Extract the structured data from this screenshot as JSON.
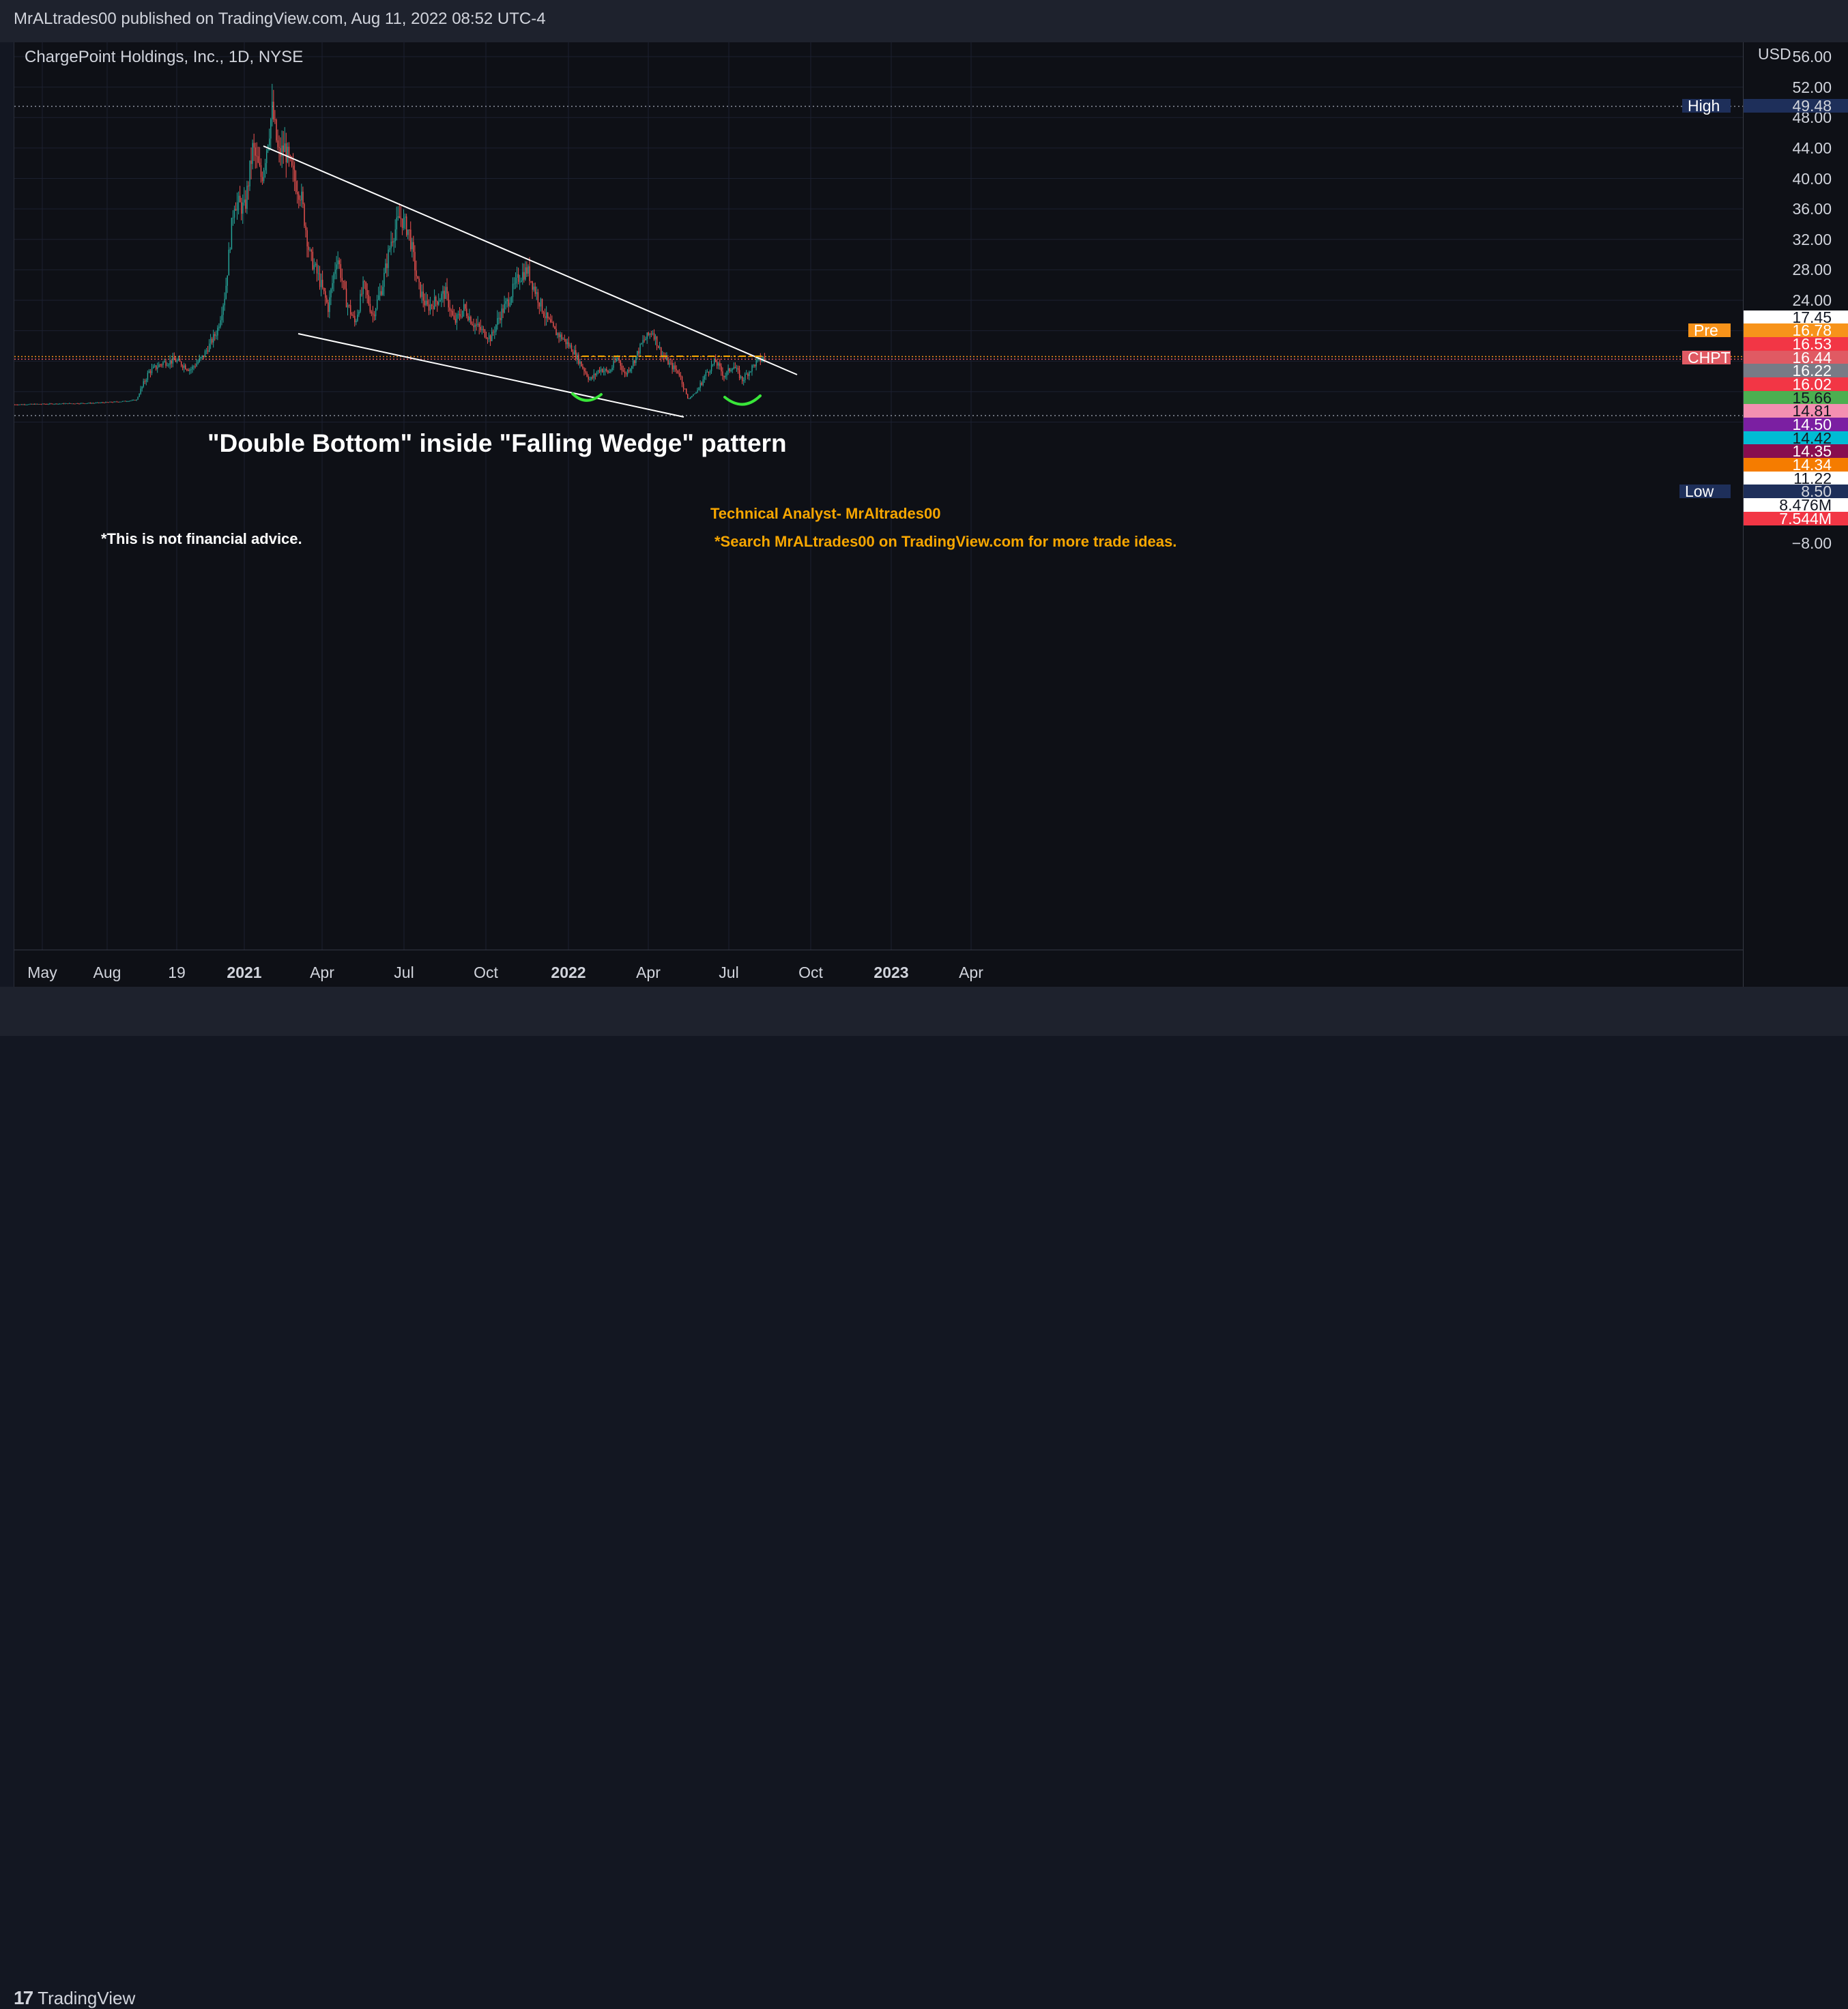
{
  "header": {
    "publisher": "MrALtrades00 published on TradingView.com, Aug 11, 2022 08:52 UTC-4"
  },
  "symbol": {
    "title": "ChargePoint Holdings, Inc., 1D, NYSE"
  },
  "price_axis": {
    "currency": "USD",
    "ticks": [
      "56.00",
      "52.00",
      "48.00",
      "44.00",
      "40.00",
      "36.00",
      "32.00",
      "28.00",
      "24.00",
      "−8.00"
    ],
    "tags": [
      {
        "label": "High",
        "value": "49.48",
        "bg": "#1e2f5a",
        "fg": "#d1d4dc",
        "labelBg": "#1e2f5a"
      },
      {
        "label": "",
        "value": "17.45",
        "bg": "#ffffff",
        "fg": "#131722"
      },
      {
        "label": "Pre",
        "value": "16.78",
        "bg": "#f7931a",
        "fg": "#ffffff",
        "labelBg": "#f7931a"
      },
      {
        "label": "",
        "value": "16.53",
        "bg": "#f23645",
        "fg": "#ffffff"
      },
      {
        "label": "CHPT",
        "value": "16.44",
        "bg": "#e05a63",
        "fg": "#ffffff",
        "labelBg": "#e05a63"
      },
      {
        "label": "",
        "value": "16.22",
        "bg": "#787b86",
        "fg": "#ffffff"
      },
      {
        "label": "",
        "value": "16.02",
        "bg": "#f23645",
        "fg": "#ffffff"
      },
      {
        "label": "",
        "value": "15.66",
        "bg": "#4caf50",
        "fg": "#131722"
      },
      {
        "label": "",
        "value": "14.81",
        "bg": "#f48fb1",
        "fg": "#131722"
      },
      {
        "label": "",
        "value": "14.50",
        "bg": "#7b1fa2",
        "fg": "#ffffff"
      },
      {
        "label": "",
        "value": "14.42",
        "bg": "#00bcd4",
        "fg": "#131722"
      },
      {
        "label": "",
        "value": "14.35",
        "bg": "#880e4f",
        "fg": "#ffffff"
      },
      {
        "label": "",
        "value": "14.34",
        "bg": "#f57c00",
        "fg": "#ffffff"
      },
      {
        "label": "",
        "value": "11.22",
        "bg": "#ffffff",
        "fg": "#131722"
      },
      {
        "label": "Low",
        "value": "8.50",
        "bg": "#1e2f5a",
        "fg": "#d1d4dc",
        "labelBg": "#1e2f5a"
      },
      {
        "label": "",
        "value": "8.476M",
        "bg": "#ffffff",
        "fg": "#131722"
      },
      {
        "label": "",
        "value": "7.544M",
        "bg": "#f23645",
        "fg": "#ffffff"
      }
    ]
  },
  "time_axis": {
    "labels": [
      {
        "text": "May",
        "bold": false
      },
      {
        "text": "Aug",
        "bold": false
      },
      {
        "text": "19",
        "bold": false
      },
      {
        "text": "2021",
        "bold": true
      },
      {
        "text": "Apr",
        "bold": false
      },
      {
        "text": "Jul",
        "bold": false
      },
      {
        "text": "Oct",
        "bold": false
      },
      {
        "text": "2022",
        "bold": true
      },
      {
        "text": "Apr",
        "bold": false
      },
      {
        "text": "Jul",
        "bold": false
      },
      {
        "text": "Oct",
        "bold": false
      },
      {
        "text": "2023",
        "bold": true
      },
      {
        "text": "Apr",
        "bold": false
      }
    ]
  },
  "annotations": {
    "pattern_note": "\"Double Bottom\" inside \"Falling Wedge\" pattern",
    "disclaimer": "*This is not financial advice.",
    "analyst": "Technical Analyst- MrAltrades00",
    "search_note": "*Search MrALtrades00 on TradingView.com for more trade ideas."
  },
  "footer": {
    "brand": "TradingView"
  },
  "colors": {
    "up": "#26a69a",
    "down": "#ef5350",
    "trendline": "#ffffff",
    "double_bottom_arc": "#39e639",
    "annotation_orange": "#f7a600",
    "resistance": "#f7a600"
  },
  "chart_data": {
    "type": "candlestick",
    "title": "ChargePoint Holdings, Inc., 1D, NYSE",
    "ylabel": "USD",
    "ylim": [
      7.8,
      58.5
    ],
    "series": [
      {
        "name": "CHPT",
        "points": [
          [
            "2020-04-15",
            10.3
          ],
          [
            "2020-06-01",
            10.4
          ],
          [
            "2020-07-15",
            10.5
          ],
          [
            "2020-08-15",
            10.7
          ],
          [
            "2020-09-01",
            10.9
          ],
          [
            "2020-09-15",
            14.6
          ],
          [
            "2020-10-01",
            15.8
          ],
          [
            "2020-10-15",
            16.1
          ],
          [
            "2020-11-01",
            14.9
          ],
          [
            "2020-11-15",
            16.6
          ],
          [
            "2020-12-01",
            20.0
          ],
          [
            "2020-12-10",
            25.0
          ],
          [
            "2020-12-20",
            37.0
          ],
          [
            "2021-01-01",
            36.0
          ],
          [
            "2021-01-10",
            44.0
          ],
          [
            "2021-01-20",
            40.0
          ],
          [
            "2021-02-01",
            49.0
          ],
          [
            "2021-02-08",
            43.0
          ],
          [
            "2021-02-15",
            44.0
          ],
          [
            "2021-02-25",
            40.0
          ],
          [
            "2021-03-05",
            38.0
          ],
          [
            "2021-03-15",
            30.0
          ],
          [
            "2021-03-25",
            27.0
          ],
          [
            "2021-04-05",
            23.0
          ],
          [
            "2021-04-15",
            30.0
          ],
          [
            "2021-04-25",
            24.0
          ],
          [
            "2021-05-05",
            21.0
          ],
          [
            "2021-05-15",
            26.0
          ],
          [
            "2021-05-25",
            22.0
          ],
          [
            "2021-06-05",
            26.0
          ],
          [
            "2021-06-15",
            32.0
          ],
          [
            "2021-06-25",
            35.0
          ],
          [
            "2021-07-05",
            33.0
          ],
          [
            "2021-07-15",
            26.0
          ],
          [
            "2021-07-25",
            23.0
          ],
          [
            "2021-08-05",
            24.0
          ],
          [
            "2021-08-15",
            25.0
          ],
          [
            "2021-08-25",
            21.0
          ],
          [
            "2021-09-05",
            23.0
          ],
          [
            "2021-09-15",
            21.0
          ],
          [
            "2021-09-25",
            20.0
          ],
          [
            "2021-10-05",
            19.0
          ],
          [
            "2021-10-15",
            22.0
          ],
          [
            "2021-10-25",
            24.0
          ],
          [
            "2021-11-05",
            27.0
          ],
          [
            "2021-11-15",
            28.0
          ],
          [
            "2021-11-25",
            25.0
          ],
          [
            "2021-12-05",
            22.0
          ],
          [
            "2021-12-15",
            20.0
          ],
          [
            "2021-12-25",
            19.0
          ],
          [
            "2022-01-05",
            17.5
          ],
          [
            "2022-01-15",
            15.5
          ],
          [
            "2022-01-25",
            13.5
          ],
          [
            "2022-02-05",
            15.0
          ],
          [
            "2022-02-15",
            14.5
          ],
          [
            "2022-02-25",
            16.5
          ],
          [
            "2022-03-05",
            14.2
          ],
          [
            "2022-03-15",
            16.0
          ],
          [
            "2022-03-25",
            18.5
          ],
          [
            "2022-04-05",
            20.0
          ],
          [
            "2022-04-15",
            17.0
          ],
          [
            "2022-04-25",
            15.5
          ],
          [
            "2022-05-05",
            14.5
          ],
          [
            "2022-05-15",
            11.0
          ],
          [
            "2022-05-25",
            12.0
          ],
          [
            "2022-06-05",
            14.5
          ],
          [
            "2022-06-15",
            16.0
          ],
          [
            "2022-06-25",
            14.0
          ],
          [
            "2022-07-05",
            15.5
          ],
          [
            "2022-07-15",
            13.5
          ],
          [
            "2022-07-25",
            15.0
          ],
          [
            "2022-08-01",
            16.0
          ],
          [
            "2022-08-10",
            16.44
          ]
        ]
      }
    ],
    "stats": {
      "high": 49.48,
      "low": 8.5,
      "last": 16.44,
      "premarket": 16.78
    },
    "drawings": {
      "upper_trendline": [
        [
          "2021-02-15",
          44.0
        ],
        [
          "2022-09-15",
          14.5
        ]
      ],
      "lower_trendline": [
        [
          "2021-03-15",
          18.0
        ],
        [
          "2022-05-15",
          8.5
        ]
      ],
      "resistance_level": 16.53,
      "double_bottom_lows": [
        "2022-02-10",
        "2022-07-10"
      ]
    }
  }
}
